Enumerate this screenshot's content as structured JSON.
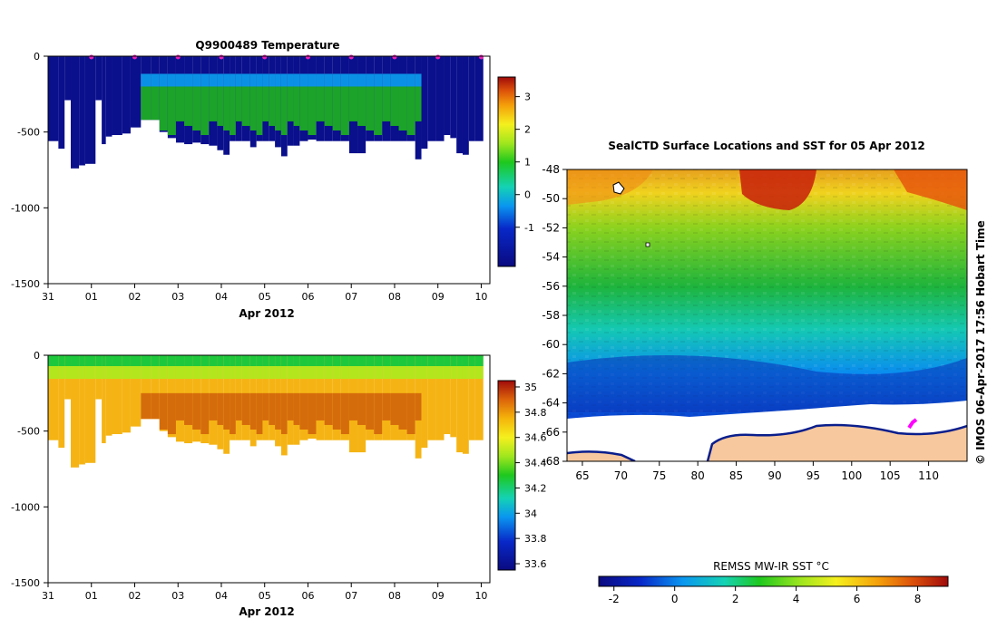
{
  "colors": {
    "ocean_warm": "#c81e0a",
    "ice": "#ffffff",
    "land": "#f7c89e",
    "coast": "#0a1e8c",
    "track": "#ff00ff"
  },
  "chart_data": [
    {
      "id": "temperature",
      "type": "heatmap",
      "title": "Q9900489  Temperature",
      "xlabel": "Apr 2012",
      "x_ticks": [
        "31",
        "01",
        "02",
        "03",
        "04",
        "05",
        "06",
        "07",
        "08",
        "09",
        "10"
      ],
      "y_ticks": [
        0,
        -500,
        -1000,
        -1500
      ],
      "ylim": [
        -1500,
        0
      ],
      "colorbar": {
        "min": -2.2,
        "max": 3.6,
        "ticks": [
          "3",
          "2",
          "1",
          "0",
          "-1"
        ],
        "tick_values": [
          3,
          2,
          1,
          0,
          -1
        ]
      },
      "profiles": [
        {
          "start": 0.0,
          "end": 0.5,
          "max_depth": 560
        },
        {
          "start": 0.5,
          "end": 0.8,
          "max_depth": 610
        },
        {
          "start": 0.8,
          "end": 1.1,
          "max_depth": 290
        },
        {
          "start": 1.1,
          "end": 1.5,
          "max_depth": 740
        },
        {
          "start": 1.5,
          "end": 1.8,
          "max_depth": 720
        },
        {
          "start": 1.8,
          "end": 2.3,
          "max_depth": 710
        },
        {
          "start": 2.3,
          "end": 2.6,
          "max_depth": 290
        },
        {
          "start": 2.6,
          "end": 2.8,
          "max_depth": 580
        },
        {
          "start": 2.8,
          "end": 3.1,
          "max_depth": 530
        },
        {
          "start": 3.1,
          "end": 3.6,
          "max_depth": 520
        },
        {
          "start": 3.6,
          "end": 4.0,
          "max_depth": 510
        },
        {
          "start": 4.0,
          "end": 4.5,
          "max_depth": 470
        },
        {
          "start": 4.5,
          "end": 5.0,
          "max_depth": 420
        },
        {
          "start": 5.0,
          "end": 5.4,
          "max_depth": 420
        },
        {
          "start": 5.4,
          "end": 5.8,
          "max_depth": 500
        },
        {
          "start": 5.8,
          "end": 6.2,
          "max_depth": 540
        },
        {
          "start": 6.2,
          "end": 6.6,
          "max_depth": 570
        },
        {
          "start": 6.6,
          "end": 7.0,
          "max_depth": 580
        },
        {
          "start": 7.0,
          "end": 7.4,
          "max_depth": 570
        },
        {
          "start": 7.4,
          "end": 7.8,
          "max_depth": 580
        },
        {
          "start": 7.8,
          "end": 8.2,
          "max_depth": 590
        },
        {
          "start": 8.2,
          "end": 8.5,
          "max_depth": 620
        },
        {
          "start": 8.5,
          "end": 8.8,
          "max_depth": 650
        },
        {
          "start": 8.8,
          "end": 9.1,
          "max_depth": 560
        },
        {
          "start": 9.1,
          "end": 9.4,
          "max_depth": 560
        },
        {
          "start": 9.4,
          "end": 9.8,
          "max_depth": 560
        },
        {
          "start": 9.8,
          "end": 10.1,
          "max_depth": 600
        },
        {
          "start": 10.1,
          "end": 10.4,
          "max_depth": 560
        },
        {
          "start": 10.4,
          "end": 10.7,
          "max_depth": 560
        },
        {
          "start": 10.7,
          "end": 11.0,
          "max_depth": 560
        },
        {
          "start": 11.0,
          "end": 11.3,
          "max_depth": 600
        },
        {
          "start": 11.3,
          "end": 11.6,
          "max_depth": 660
        },
        {
          "start": 11.6,
          "end": 11.9,
          "max_depth": 590
        },
        {
          "start": 11.9,
          "end": 12.2,
          "max_depth": 590
        },
        {
          "start": 12.2,
          "end": 12.6,
          "max_depth": 560
        },
        {
          "start": 12.6,
          "end": 13.0,
          "max_depth": 550
        },
        {
          "start": 13.0,
          "end": 13.4,
          "max_depth": 560
        },
        {
          "start": 13.4,
          "end": 13.8,
          "max_depth": 560
        },
        {
          "start": 13.8,
          "end": 14.2,
          "max_depth": 560
        },
        {
          "start": 14.2,
          "end": 14.6,
          "max_depth": 560
        },
        {
          "start": 14.6,
          "end": 15.0,
          "max_depth": 640
        },
        {
          "start": 15.0,
          "end": 15.4,
          "max_depth": 640
        },
        {
          "start": 15.4,
          "end": 15.8,
          "max_depth": 560
        },
        {
          "start": 15.8,
          "end": 16.2,
          "max_depth": 560
        },
        {
          "start": 16.2,
          "end": 16.6,
          "max_depth": 560
        },
        {
          "start": 16.6,
          "end": 17.0,
          "max_depth": 560
        },
        {
          "start": 17.0,
          "end": 17.4,
          "max_depth": 560
        },
        {
          "start": 17.4,
          "end": 17.8,
          "max_depth": 560
        },
        {
          "start": 17.8,
          "end": 18.1,
          "max_depth": 680
        },
        {
          "start": 18.1,
          "end": 18.4,
          "max_depth": 610
        },
        {
          "start": 18.4,
          "end": 18.8,
          "max_depth": 560
        },
        {
          "start": 18.8,
          "end": 19.2,
          "max_depth": 560
        },
        {
          "start": 19.2,
          "end": 19.5,
          "max_depth": 520
        },
        {
          "start": 19.5,
          "end": 19.8,
          "max_depth": 540
        },
        {
          "start": 19.8,
          "end": 20.1,
          "max_depth": 640
        },
        {
          "start": 20.1,
          "end": 20.4,
          "max_depth": 650
        },
        {
          "start": 20.4,
          "end": 20.7,
          "max_depth": 560
        },
        {
          "start": 20.7,
          "end": 21.1,
          "max_depth": 560
        }
      ]
    },
    {
      "id": "salinity",
      "type": "heatmap",
      "title": "",
      "xlabel": "Apr 2012",
      "x_ticks": [
        "31",
        "01",
        "02",
        "03",
        "04",
        "05",
        "06",
        "07",
        "08",
        "09",
        "10"
      ],
      "y_ticks": [
        0,
        -500,
        -1000,
        -1500
      ],
      "ylim": [
        -1500,
        0
      ],
      "colorbar": {
        "min": 33.55,
        "max": 35.05,
        "ticks": [
          "35",
          "34.8",
          "34.6",
          "34.4",
          "34.2",
          "34",
          "33.8",
          "33.6"
        ],
        "tick_values": [
          35,
          34.8,
          34.6,
          34.4,
          34.2,
          34,
          33.8,
          33.6
        ]
      }
    },
    {
      "id": "sst_map",
      "type": "heatmap",
      "title": "SealCTD Surface Locations and SST for 05 Apr 2012",
      "x_ticks": [
        "65",
        "70",
        "75",
        "80",
        "85",
        "90",
        "95",
        "100",
        "105",
        "110"
      ],
      "x_tick_values": [
        65,
        70,
        75,
        80,
        85,
        90,
        95,
        100,
        105,
        110
      ],
      "y_ticks": [
        "-48",
        "-50",
        "-52",
        "-54",
        "-56",
        "-58",
        "-60",
        "-62",
        "-64",
        "-66",
        "-68"
      ],
      "y_tick_values": [
        -48,
        -50,
        -52,
        -54,
        -56,
        -58,
        -60,
        -62,
        -64,
        -66,
        -68
      ],
      "xlim": [
        63,
        115
      ],
      "ylim": [
        -68,
        -48
      ],
      "colorbar": {
        "label": "REMSS MW-IR SST °C",
        "min": -2.5,
        "max": 9,
        "ticks": [
          "-2",
          "0",
          "2",
          "4",
          "6",
          "8"
        ],
        "tick_values": [
          -2,
          0,
          2,
          4,
          6,
          8
        ]
      }
    }
  ],
  "credit": "©  IMOS 06-Apr-2017 17:56 Hobart Time"
}
